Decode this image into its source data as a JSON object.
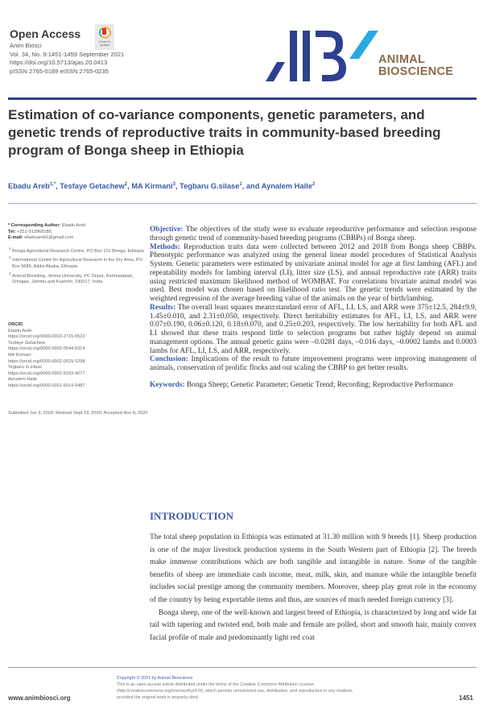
{
  "header": {
    "open_access": "Open Access",
    "journal_abbrev": "Anim Biosci",
    "volume": "Vol. 34, No. 9:1451-1459 September 2021",
    "doi": "https://doi.org/10.5713/ajas.20.0413",
    "issn": "pISSN 2765-0189 eISSN 2765-0235",
    "crossmark_label": "Check for updates",
    "logo_line1": "ANIMAL",
    "logo_line2": "BIOSCIENCE",
    "logo_colors": {
      "dark_blue": "#2e3f8f",
      "light_blue": "#2aa8e0",
      "brown": "#8b6a4c"
    }
  },
  "article": {
    "title": "Estimation of co-variance components, genetic parameters, and genetic trends of reproductive traits in community-based breeding program of Bonga sheep in Ethiopia",
    "authors": [
      {
        "name": "Ebadu Areb",
        "sup": "1,*"
      },
      {
        "name": "Tesfaye Getachew",
        "sup": "2"
      },
      {
        "name": "MA Kirmani",
        "sup": "3"
      },
      {
        "name": "Tegbaru G.silase",
        "sup": "1"
      },
      {
        "name": "Aynalem Haile",
        "sup": "2"
      }
    ]
  },
  "sidebar": {
    "corresponding_label": "* Corresponding Author:",
    "corresponding_name": "Ebadu Areb",
    "tel_label": "Tel:",
    "tel": "+251-913968188,",
    "email_label": "E-mail:",
    "email": "ebaduareb1@gmail.com",
    "affiliations": [
      {
        "sup": "1",
        "text": "Bonga Agricultural Research Centre, PO Box 101 Bonga, Ethiopia"
      },
      {
        "sup": "2",
        "text": "International Centre for Agricultural Research in the Dry Area, PO Box 5689, Addis Ababa, Ethiopia"
      },
      {
        "sup": "3",
        "text": "Animal Breeding, Jimma University, PC Depot, Rehmatabad, Srinagar, Jammu and Kashmir, 190017, India"
      }
    ],
    "orcid_label": "ORCID",
    "orcid": [
      {
        "name": "Ebadu Areb",
        "url": "https://orcid.org/0000-0003-2715-5523"
      },
      {
        "name": "Tesfaye Getachew",
        "url": "https://orcid.org/0000-0002-0544-6314"
      },
      {
        "name": "MA Kirmani",
        "url": "https://orcid.org/0000-0002-0529-5298"
      },
      {
        "name": "Tegbaru G.silase",
        "url": "https://orcid.org/0000-0002-8163-4077"
      },
      {
        "name": "Aynalem Haile",
        "url": "https://orcid.org/0000-0001-5914-0487"
      }
    ],
    "dates": "Submitted Jun 9, 2020; Revised Sept 19, 2020; Accepted Nov 8, 2020"
  },
  "abstract": {
    "objective_label": "Objective:",
    "objective": "The objectives of the study were to evaluate reproductive performance and selection response through genetic trend of community-based breeding programs (CBBPs) of Bonga sheep.",
    "methods_label": "Methods:",
    "methods": "Reproduction traits data were collected between 2012 and 2018 from Bonga sheep CBBPs. Phenotypic performance was analyzed using the general linear model procedures of Statistical Analysis System. Genetic parameters were estimated by univariate animal model for age at first lambing (AFL) and repeatability models for lambing interval (LI), litter size (LS), and annual reproductive rate (ARR) traits using restricted maximum likelihood method of WOMBAT. For correlations bivariate animal model was used. Best model was chosen based on likelihood ratio test. The genetic trends were estimated by the weighted regression of the average breeding value of the animals on the year of birth/lambing.",
    "results_label": "Results:",
    "results": "The overall least squares mean±standard error of AFL, LI, LS, and ARR were 375±12.5, 284±9.9, 1.45±0.010, and 2.31±0.050, respectively. Direct heritability estimates for AFL, LI, LS, and ARR were 0.07±0.190, 0.06±0.120, 0.18±0.070, and 0.25±0.203, respectively. The low heritability for both AFL and LI showed that these traits respond little to selection programs but rather highly depend on animal management options. The annual genetic gains were –0.0281 days, –0.016 days, –0.0002 lambs and 0.0003 lambs for AFL, LI, LS, and ARR, respectively.",
    "conclusion_label": "Conclusion:",
    "conclusion": "Implications of the result to future improvement programs were improving management of animals, conservation of prolific flocks and out scaling the CBBP to get better results.",
    "keywords_label": "Keywords:",
    "keywords": "Bonga Sheep; Genetic Parameter; Genetic Trend; Recording; Reproductive Performance"
  },
  "introduction": {
    "heading": "INTRODUCTION",
    "paragraphs": [
      "The total sheep population in Ethiopia was estimated at 31.30 million with 9 breeds [1]. Sheep production is one of the major livestock production systems in the South Western part of Ethiopia [2]. The breeds make immense contributions which are both tangible and intangible in nature. Some of the tangible benefits of sheep are immediate cash income, meat, milk, skin, and manure while the intangible benefit includes social prestige among the community members. Moreover, sheep play great role in the economy of the country by being exportable items and thus, are sources of much needed foreign currency [3].",
      "Bonga sheep, one of the well-known and largest breed of Ethiopia, is characterized by long and wide fat tail with tapering and twisted end, both male and female are polled, short and smooth hair, mainly convex facial profile of male and predominantly light red coat"
    ]
  },
  "footer": {
    "website": "www.animbiosci.org",
    "copyright": "Copyright © 2021 by Animal Bioscience",
    "license": "This is an open-access article distributed under the terms of the Creative Commons Attribution License (http://creativecommons.org/licenses/by/4.0/), which permits unrestricted use, distribution, and reproduction in any medium, provided the original work is properly cited.",
    "page_number": "1451"
  }
}
